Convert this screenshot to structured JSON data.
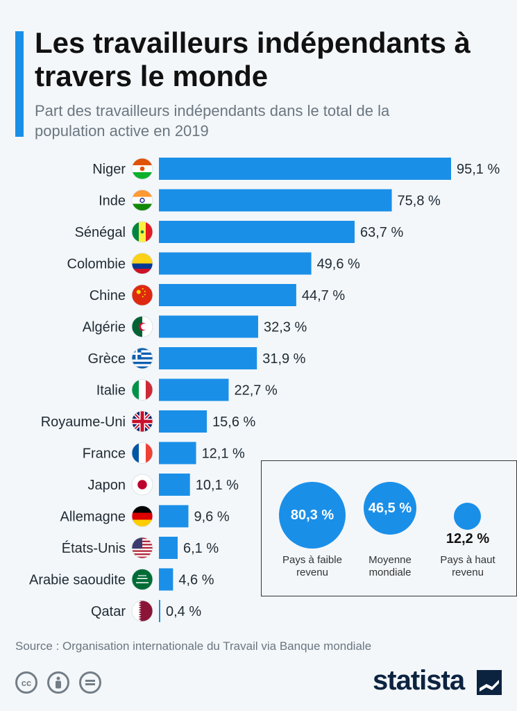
{
  "title": "Les travailleurs indépendants à travers le monde",
  "subtitle": "Part des travailleurs indépendants dans le total de la population active en 2019",
  "chart_data": {
    "type": "bar",
    "orientation": "horizontal",
    "title": "Les travailleurs indépendants à travers le monde",
    "subtitle": "Part des travailleurs indépendants dans le total de la population active en 2019",
    "categories": [
      "Niger",
      "Inde",
      "Sénégal",
      "Colombie",
      "Chine",
      "Algérie",
      "Grèce",
      "Italie",
      "Royaume-Uni",
      "France",
      "Japon",
      "Allemagne",
      "États-Unis",
      "Arabie saoudite",
      "Qatar"
    ],
    "values": [
      95.1,
      75.8,
      63.7,
      49.6,
      44.7,
      32.3,
      31.9,
      22.7,
      15.6,
      12.1,
      10.1,
      9.6,
      6.1,
      4.6,
      0.4
    ],
    "value_labels": [
      "95,1 %",
      "75,8 %",
      "63,7 %",
      "49,6 %",
      "44,7 %",
      "32,3 %",
      "31,9 %",
      "22,7 %",
      "15,6 %",
      "12,1 %",
      "10,1 %",
      "9,6 %",
      "6,1 %",
      "4,6 %",
      "0,4 %"
    ],
    "flag_icons": [
      "niger-flag-icon",
      "india-flag-icon",
      "senegal-flag-icon",
      "colombia-flag-icon",
      "china-flag-icon",
      "algeria-flag-icon",
      "greece-flag-icon",
      "italy-flag-icon",
      "uk-flag-icon",
      "france-flag-icon",
      "japan-flag-icon",
      "germany-flag-icon",
      "usa-flag-icon",
      "saudi-arabia-flag-icon",
      "qatar-flag-icon"
    ],
    "xlim": [
      0,
      100
    ],
    "bar_color": "#1a8fe8",
    "grid": false,
    "summary": [
      {
        "value": 80.3,
        "label": "80,3 %",
        "caption": "Pays à faible revenu"
      },
      {
        "value": 46.5,
        "label": "46,5 %",
        "caption": "Moyenne mondiale"
      },
      {
        "value": 12.2,
        "label": "12,2 %",
        "caption": "Pays à haut revenu"
      }
    ]
  },
  "source": "Source : Organisation internationale du Travail via Banque mondiale",
  "footer": {
    "license_icons": [
      "cc-icon",
      "attribution-icon",
      "no-derivatives-icon"
    ],
    "cc_text": "cc",
    "brand": "statista"
  },
  "colors": {
    "accent": "#1a8fe8",
    "brand": "#0c2340",
    "background": "#f3f7fa"
  }
}
